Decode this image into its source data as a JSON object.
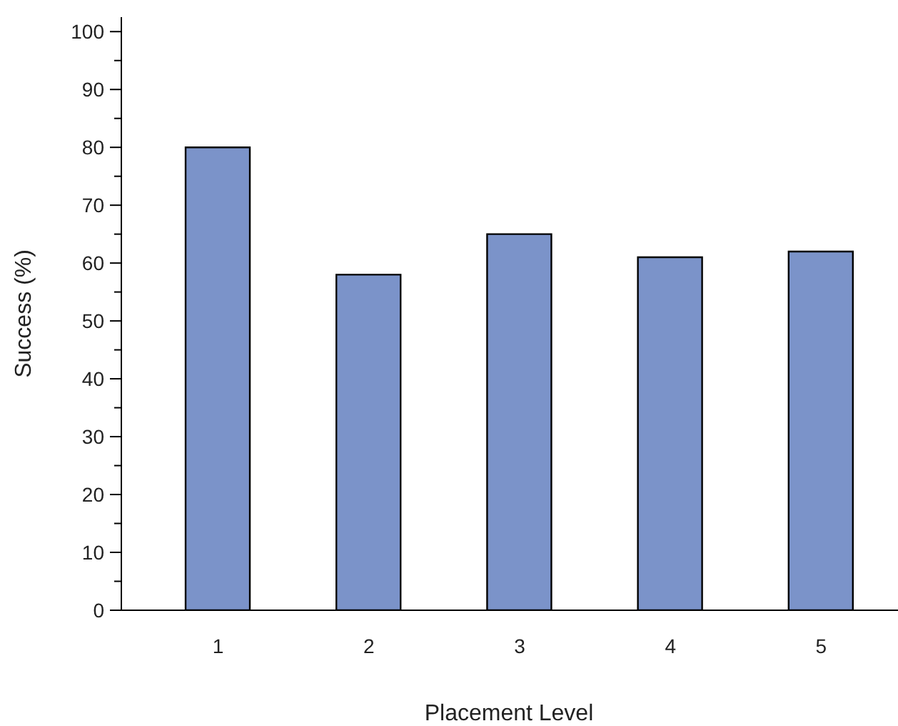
{
  "chart_data": {
    "type": "bar",
    "xlabel": "Placement Level",
    "ylabel": "Success (%)",
    "categories": [
      "1",
      "2",
      "3",
      "4",
      "5"
    ],
    "values": [
      80,
      58,
      65,
      61,
      62
    ],
    "color": "#7b93c9",
    "ylim": [
      0,
      102.5
    ],
    "yticks": [
      0,
      {
        "value": 5,
        "label": null
      },
      10,
      {
        "value": 15,
        "label": null
      },
      20,
      {
        "value": 25,
        "label": null
      },
      30,
      {
        "value": 35,
        "label": null
      },
      40,
      {
        "value": 45,
        "label": null
      },
      50,
      {
        "value": 55,
        "label": null
      },
      60,
      {
        "value": 65,
        "label": null
      },
      70,
      {
        "value": 75,
        "label": null
      },
      80,
      {
        "value": 85,
        "label": null
      },
      90,
      {
        "value": 95,
        "label": null
      },
      100
    ],
    "grid": false
  }
}
